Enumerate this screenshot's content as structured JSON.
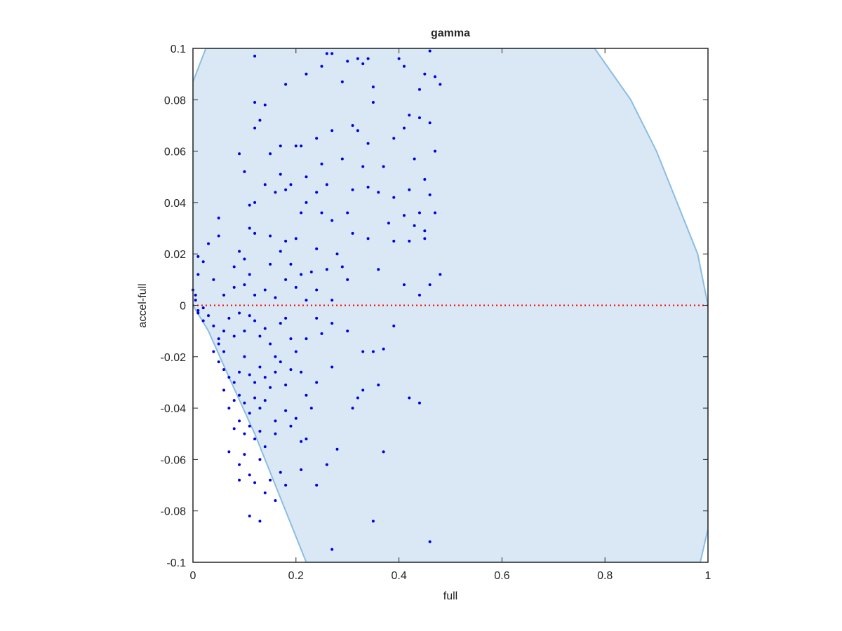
{
  "chart_data": {
    "type": "scatter",
    "title": "gamma",
    "xlabel": "full",
    "ylabel": "accel-full",
    "xlim": [
      0,
      1
    ],
    "ylim": [
      -0.1,
      0.1
    ],
    "xticks": [
      0,
      0.2,
      0.4,
      0.6,
      0.8,
      1
    ],
    "yticks": [
      -0.1,
      -0.08,
      -0.06,
      -0.04,
      -0.02,
      0,
      0.02,
      0.04,
      0.06,
      0.08,
      0.1
    ],
    "region": {
      "color": "#d9e8f4",
      "edge_color": "#8bbde3",
      "x": [
        0,
        0,
        0.025,
        0.78,
        0.85,
        0.9,
        0.95,
        0.98,
        1,
        1,
        0.985,
        0.22,
        0.17,
        0.12,
        0.07,
        0.03,
        0
      ],
      "y": [
        0,
        0.087,
        0.1,
        0.1,
        0.08,
        0.06,
        0.035,
        0.02,
        0,
        -0.087,
        -0.1,
        -0.1,
        -0.075,
        -0.05,
        -0.028,
        -0.01,
        0
      ]
    },
    "reference_line": {
      "y": 0,
      "color": "#ff0000"
    },
    "series": [
      {
        "color": "#0000e0",
        "x": [
          0.12,
          0.26,
          0.27,
          0.4,
          0.46,
          0.32,
          0.33,
          0.34,
          0.3,
          0.18,
          0.22,
          0.25,
          0.12,
          0.14,
          0.35,
          0.35,
          0.29,
          0.44,
          0.47,
          0.48,
          0.45,
          0.41,
          0.13,
          0.12,
          0.09,
          0.1,
          0.2,
          0.21,
          0.24,
          0.27,
          0.31,
          0.32,
          0.39,
          0.41,
          0.42,
          0.44,
          0.46,
          0.47,
          0.15,
          0.17,
          0.25,
          0.29,
          0.34,
          0.33,
          0.37,
          0.43,
          0.45,
          0.17,
          0.18,
          0.16,
          0.19,
          0.22,
          0.24,
          0.26,
          0.31,
          0.34,
          0.36,
          0.39,
          0.42,
          0.46,
          0.47,
          0.11,
          0.12,
          0.14,
          0.21,
          0.22,
          0.25,
          0.3,
          0.27,
          0.38,
          0.41,
          0.43,
          0.44,
          0.45,
          0.05,
          0.05,
          0.11,
          0.12,
          0.15,
          0.18,
          0.2,
          0.24,
          0.28,
          0.31,
          0.34,
          0.39,
          0.42,
          0.45,
          0.46,
          0.48,
          0.44,
          0.03,
          0.01,
          0.02,
          0.08,
          0.09,
          0.1,
          0.11,
          0.15,
          0.17,
          0.19,
          0.21,
          0.23,
          0.26,
          0.29,
          0.3,
          0.36,
          0.41,
          0.0,
          0.005,
          0.01,
          0.04,
          0.06,
          0.08,
          0.1,
          0.12,
          0.14,
          0.16,
          0.18,
          0.2,
          0.22,
          0.24,
          0.27,
          0.005,
          0.01,
          0.02,
          0.03,
          0.04,
          0.05,
          0.06,
          0.07,
          0.08,
          0.09,
          0.1,
          0.11,
          0.12,
          0.13,
          0.14,
          0.15,
          0.16,
          0.17,
          0.18,
          0.19,
          0.2,
          0.22,
          0.24,
          0.25,
          0.27,
          0.3,
          0.33,
          0.35,
          0.37,
          0.39,
          0.04,
          0.05,
          0.06,
          0.07,
          0.08,
          0.09,
          0.1,
          0.11,
          0.12,
          0.13,
          0.14,
          0.15,
          0.16,
          0.17,
          0.18,
          0.19,
          0.21,
          0.22,
          0.24,
          0.27,
          0.32,
          0.33,
          0.36,
          0.31,
          0.42,
          0.44,
          0.06,
          0.07,
          0.08,
          0.09,
          0.1,
          0.11,
          0.12,
          0.13,
          0.14,
          0.16,
          0.18,
          0.2,
          0.23,
          0.08,
          0.09,
          0.1,
          0.11,
          0.12,
          0.13,
          0.14,
          0.16,
          0.19,
          0.21,
          0.22,
          0.07,
          0.09,
          0.1,
          0.11,
          0.13,
          0.15,
          0.17,
          0.18,
          0.21,
          0.24,
          0.26,
          0.28,
          0.37,
          0.09,
          0.12,
          0.14,
          0.16,
          0.11,
          0.13,
          0.35,
          0.27,
          0.46,
          0.01,
          0.02,
          0.05,
          0.06
        ],
        "y": [
          0.097,
          0.098,
          0.098,
          0.096,
          0.099,
          0.096,
          0.094,
          0.096,
          0.095,
          0.086,
          0.09,
          0.093,
          0.079,
          0.078,
          0.079,
          0.085,
          0.087,
          0.084,
          0.089,
          0.086,
          0.09,
          0.093,
          0.072,
          0.069,
          0.059,
          0.052,
          0.062,
          0.062,
          0.065,
          0.068,
          0.07,
          0.068,
          0.065,
          0.069,
          0.074,
          0.073,
          0.071,
          0.06,
          0.059,
          0.062,
          0.055,
          0.057,
          0.063,
          0.054,
          0.054,
          0.057,
          0.049,
          0.051,
          0.045,
          0.044,
          0.047,
          0.05,
          0.044,
          0.047,
          0.045,
          0.046,
          0.044,
          0.042,
          0.045,
          0.043,
          0.036,
          0.039,
          0.04,
          0.047,
          0.036,
          0.04,
          0.036,
          0.036,
          0.033,
          0.032,
          0.035,
          0.031,
          0.036,
          0.029,
          0.034,
          0.027,
          0.03,
          0.028,
          0.027,
          0.025,
          0.026,
          0.022,
          0.02,
          0.028,
          0.026,
          0.025,
          0.025,
          0.026,
          0.008,
          0.012,
          0.004,
          0.024,
          0.019,
          0.017,
          0.015,
          0.021,
          0.018,
          0.012,
          0.016,
          0.021,
          0.016,
          0.012,
          0.013,
          0.014,
          0.015,
          0.01,
          0.014,
          0.008,
          0.006,
          0.004,
          0.012,
          0.01,
          0.004,
          0.007,
          0.008,
          0.004,
          0.006,
          0.003,
          0.01,
          0.007,
          0.002,
          0.006,
          0.002,
          0.002,
          -0.002,
          -0.001,
          -0.004,
          -0.008,
          -0.013,
          -0.01,
          -0.005,
          -0.012,
          -0.003,
          -0.01,
          -0.004,
          -0.006,
          -0.012,
          -0.009,
          -0.015,
          -0.02,
          -0.007,
          -0.005,
          -0.013,
          -0.018,
          -0.013,
          -0.005,
          -0.011,
          -0.007,
          -0.01,
          -0.018,
          -0.018,
          -0.017,
          -0.008,
          -0.018,
          -0.022,
          -0.025,
          -0.028,
          -0.03,
          -0.026,
          -0.02,
          -0.027,
          -0.03,
          -0.024,
          -0.028,
          -0.032,
          -0.026,
          -0.022,
          -0.031,
          -0.025,
          -0.026,
          -0.035,
          -0.03,
          -0.024,
          -0.036,
          -0.033,
          -0.031,
          -0.04,
          -0.036,
          -0.038,
          -0.033,
          -0.04,
          -0.037,
          -0.035,
          -0.038,
          -0.042,
          -0.036,
          -0.04,
          -0.037,
          -0.045,
          -0.041,
          -0.044,
          -0.04,
          -0.048,
          -0.045,
          -0.05,
          -0.047,
          -0.052,
          -0.049,
          -0.055,
          -0.05,
          -0.047,
          -0.053,
          -0.052,
          -0.057,
          -0.062,
          -0.058,
          -0.066,
          -0.06,
          -0.068,
          -0.065,
          -0.07,
          -0.064,
          -0.07,
          -0.062,
          -0.056,
          -0.057,
          -0.068,
          -0.069,
          -0.073,
          -0.076,
          -0.082,
          -0.084,
          -0.084,
          -0.095,
          -0.092,
          -0.003,
          -0.006,
          -0.015,
          -0.018
        ]
      }
    ]
  }
}
